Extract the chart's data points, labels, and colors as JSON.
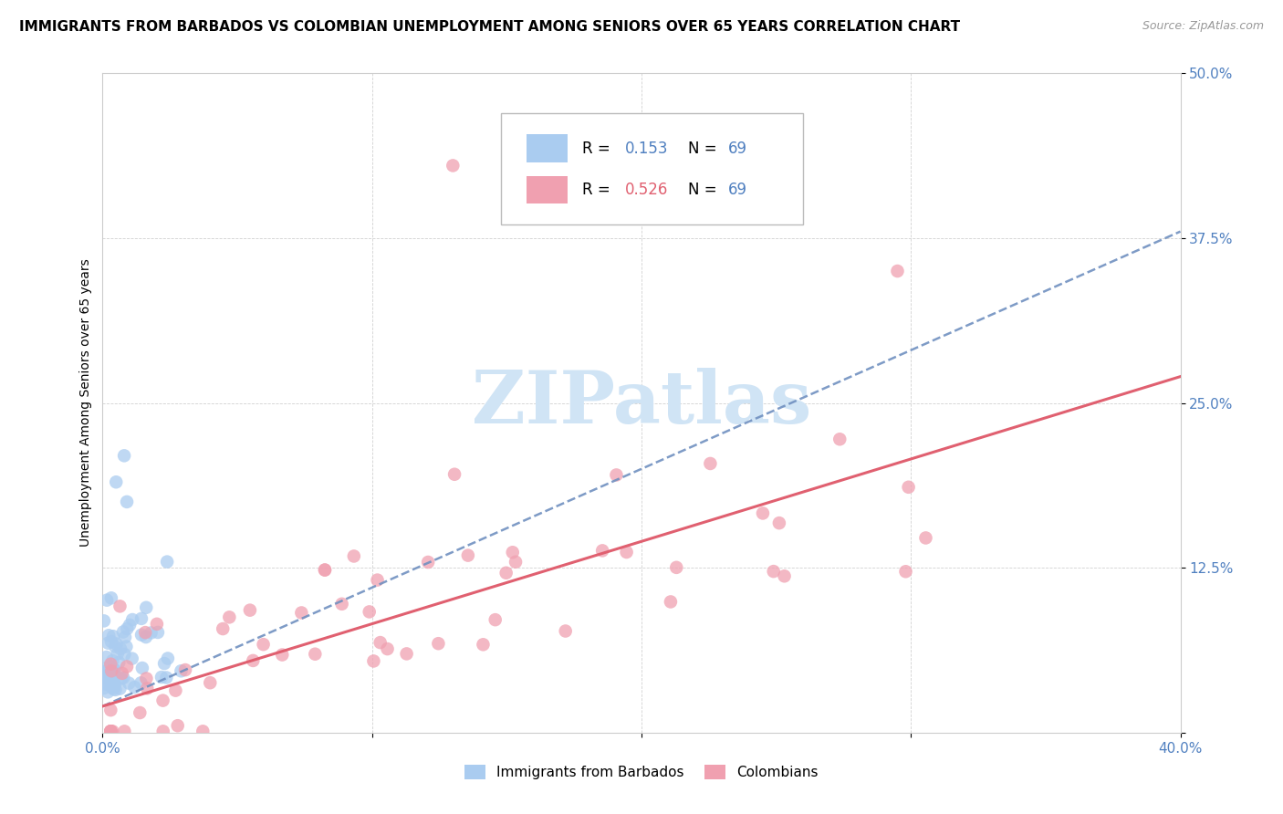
{
  "title": "IMMIGRANTS FROM BARBADOS VS COLOMBIAN UNEMPLOYMENT AMONG SENIORS OVER 65 YEARS CORRELATION CHART",
  "source": "Source: ZipAtlas.com",
  "ylabel": "Unemployment Among Seniors over 65 years",
  "xlim": [
    0.0,
    0.4
  ],
  "ylim": [
    0.0,
    0.5
  ],
  "xticks": [
    0.0,
    0.1,
    0.2,
    0.3,
    0.4
  ],
  "xtick_labels": [
    "0.0%",
    "",
    "",
    "",
    "40.0%"
  ],
  "yticks": [
    0.0,
    0.125,
    0.25,
    0.375,
    0.5
  ],
  "ytick_labels": [
    "",
    "12.5%",
    "25.0%",
    "37.5%",
    "50.0%"
  ],
  "blue_color": "#aaccf0",
  "pink_color": "#f0a0b0",
  "blue_line_color": "#7090c0",
  "pink_line_color": "#e06070",
  "tick_color": "#5080c0",
  "watermark_color": "#d0e4f5",
  "title_fontsize": 11,
  "axis_label_fontsize": 10,
  "tick_fontsize": 11
}
